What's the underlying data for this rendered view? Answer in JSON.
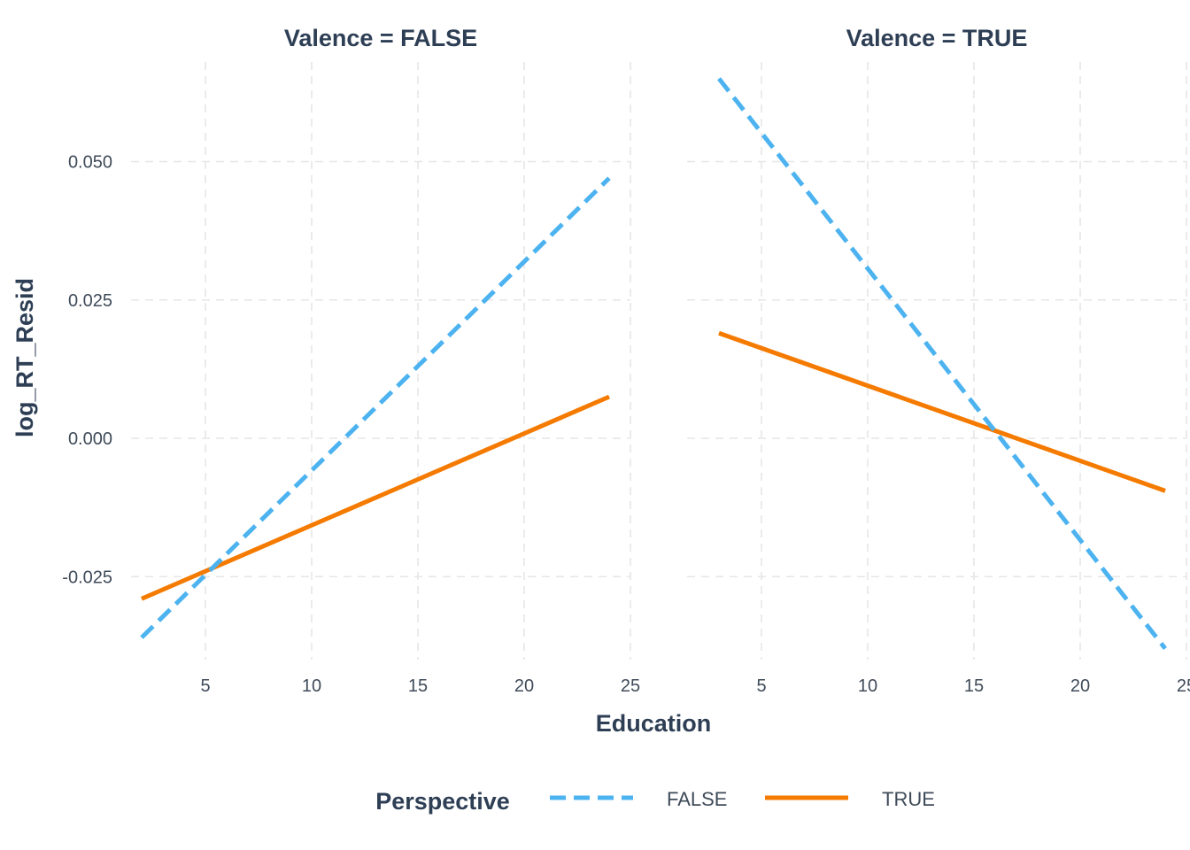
{
  "chart_data": {
    "type": "line",
    "xlabel": "Education",
    "ylabel": "log_RT_Resid",
    "xlim": [
      1.5,
      25
    ],
    "ylim": [
      -0.04,
      0.068
    ],
    "x_ticks": [
      5,
      10,
      15,
      20,
      25
    ],
    "x_tick_labels": [
      "5",
      "10",
      "15",
      "20",
      "25"
    ],
    "y_ticks": [
      -0.025,
      0.0,
      0.025,
      0.05
    ],
    "y_tick_labels": [
      "-0.025",
      "0.000",
      "0.025",
      "0.050"
    ],
    "grid": true,
    "legend": {
      "title": "Perspective",
      "position": "bottom",
      "entries": [
        {
          "label": "FALSE",
          "color": "#4db3f0",
          "style": "dashed"
        },
        {
          "label": "TRUE",
          "color": "#f57a00",
          "style": "solid"
        }
      ]
    },
    "panels": [
      {
        "title": "Valence = FALSE",
        "series": [
          {
            "name": "FALSE",
            "x": [
              2,
              24
            ],
            "y": [
              -0.036,
              0.047
            ]
          },
          {
            "name": "TRUE",
            "x": [
              2,
              24
            ],
            "y": [
              -0.029,
              0.0075
            ]
          }
        ]
      },
      {
        "title": "Valence = TRUE",
        "series": [
          {
            "name": "FALSE",
            "x": [
              3,
              24
            ],
            "y": [
              0.065,
              -0.038
            ]
          },
          {
            "name": "TRUE",
            "x": [
              3,
              24
            ],
            "y": [
              0.019,
              -0.0095
            ]
          }
        ]
      }
    ]
  }
}
